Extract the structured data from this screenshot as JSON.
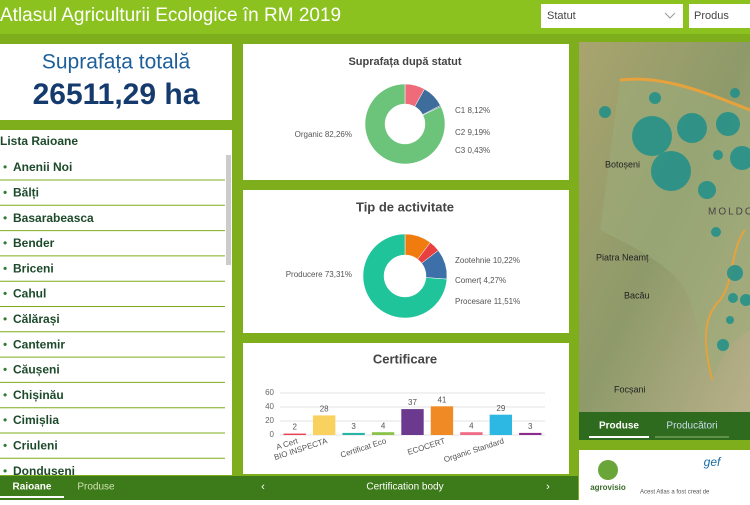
{
  "header": {
    "title": "Atlasul Agriculturii Ecologice în RM 2019",
    "filters": [
      "Statut",
      "Produs"
    ]
  },
  "total": {
    "label": "Suprafața totală",
    "value": "26511,29 ha"
  },
  "list": {
    "title": "Lista Raioane",
    "items": [
      "Anenii Noi",
      "Bălți",
      "Basarabeasca",
      "Bender",
      "Briceni",
      "Cahul",
      "Călărași",
      "Cantemir",
      "Căușeni",
      "Chișinău",
      "Cimișlia",
      "Criuleni",
      "Donduseni"
    ]
  },
  "chart_data": [
    {
      "type": "pie",
      "title": "Suprafața după statut",
      "categories": [
        "C1",
        "C2",
        "C3",
        "Organic"
      ],
      "values": [
        8.12,
        9.19,
        0.43,
        82.26
      ],
      "value_labels": [
        "8,12%",
        "9,19%",
        "0,43%",
        "82,26%"
      ],
      "colors": [
        "#ef6b7a",
        "#3e6d9c",
        "#2f4a7a",
        "#6cc47a"
      ]
    },
    {
      "type": "pie",
      "title": "Tip de activitate",
      "categories": [
        "Zootehnie",
        "Comerț",
        "Procesare",
        "Producere"
      ],
      "values": [
        10.22,
        4.27,
        11.51,
        73.31
      ],
      "value_labels": [
        "10,22%",
        "4,27%",
        "11,51%",
        "73,31%"
      ],
      "colors": [
        "#f07c10",
        "#e84040",
        "#3d6fa8",
        "#1fc49a"
      ]
    },
    {
      "type": "bar",
      "title": "Certificare",
      "x_label": "Certification body",
      "categories": [
        "A Cert",
        "BIO INSPECTA",
        null,
        "Certificat Eco",
        null,
        "ECOCERT",
        null,
        "Organic Standard",
        null
      ],
      "values": [
        2,
        28,
        3,
        4,
        37,
        41,
        4,
        29,
        3
      ],
      "colors": [
        "#e84050",
        "#f9d15e",
        "#27b5a6",
        "#8bc34a",
        "#6b3a8e",
        "#f08a24",
        "#f06b86",
        "#2db7e3",
        "#8e2b8e"
      ],
      "ylim": [
        0,
        60
      ],
      "yticks": [
        0,
        20,
        40,
        60
      ],
      "grid": true
    }
  ],
  "map": {
    "places": [
      "Botoșeni",
      "Piatra Neamț",
      "Bacău",
      "Focșani",
      "MOLDO"
    ],
    "tabs": [
      "Produse",
      "Producători"
    ]
  },
  "logos": {
    "agro": "agrovisio",
    "gef": "gef",
    "note": "Acest Atlas a fost creat de"
  },
  "footer": {
    "tabs": [
      "Raioane",
      "Produse"
    ]
  }
}
